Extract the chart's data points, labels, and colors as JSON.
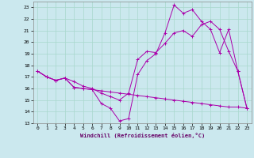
{
  "background_color": "#cbe8ee",
  "grid_color": "#a8d8cc",
  "line_color": "#aa00aa",
  "xlabel": "Windchill (Refroidissement éolien,°C)",
  "xlim": [
    -0.5,
    23.5
  ],
  "ylim": [
    13,
    23.5
  ],
  "yticks": [
    13,
    14,
    15,
    16,
    17,
    18,
    19,
    20,
    21,
    22,
    23
  ],
  "xticks": [
    0,
    1,
    2,
    3,
    4,
    5,
    6,
    7,
    8,
    9,
    10,
    11,
    12,
    13,
    14,
    15,
    16,
    17,
    18,
    19,
    20,
    21,
    22,
    23
  ],
  "line1_x": [
    0,
    1,
    2,
    3,
    4,
    5,
    6,
    7,
    8,
    9,
    10,
    11,
    12,
    13,
    14,
    15,
    16,
    17,
    18,
    19,
    20,
    21,
    22,
    23
  ],
  "line1_y": [
    17.5,
    17.0,
    16.7,
    16.9,
    16.1,
    16.0,
    15.9,
    15.8,
    15.7,
    15.6,
    15.5,
    15.4,
    15.3,
    15.2,
    15.1,
    15.0,
    14.9,
    14.8,
    14.7,
    14.6,
    14.5,
    14.4,
    14.4,
    14.3
  ],
  "line2_x": [
    0,
    1,
    2,
    3,
    4,
    5,
    6,
    7,
    8,
    9,
    10,
    11,
    12,
    13,
    14,
    15,
    16,
    17,
    18,
    19,
    20,
    21,
    22,
    23
  ],
  "line2_y": [
    17.5,
    17.0,
    16.7,
    16.9,
    16.1,
    16.0,
    15.9,
    14.7,
    14.3,
    13.2,
    13.4,
    17.2,
    18.4,
    19.0,
    20.8,
    23.2,
    22.5,
    22.8,
    21.8,
    21.1,
    19.1,
    21.1,
    17.5,
    14.3
  ],
  "line3_x": [
    0,
    1,
    2,
    3,
    4,
    5,
    6,
    7,
    8,
    9,
    10,
    11,
    12,
    13,
    14,
    15,
    16,
    17,
    18,
    19,
    20,
    21,
    22,
    23
  ],
  "line3_y": [
    17.5,
    17.0,
    16.7,
    16.9,
    16.6,
    16.2,
    16.0,
    15.6,
    15.3,
    15.0,
    15.6,
    18.5,
    19.2,
    19.1,
    19.9,
    20.8,
    21.0,
    20.5,
    21.5,
    21.8,
    21.1,
    19.2,
    17.5,
    14.3
  ]
}
